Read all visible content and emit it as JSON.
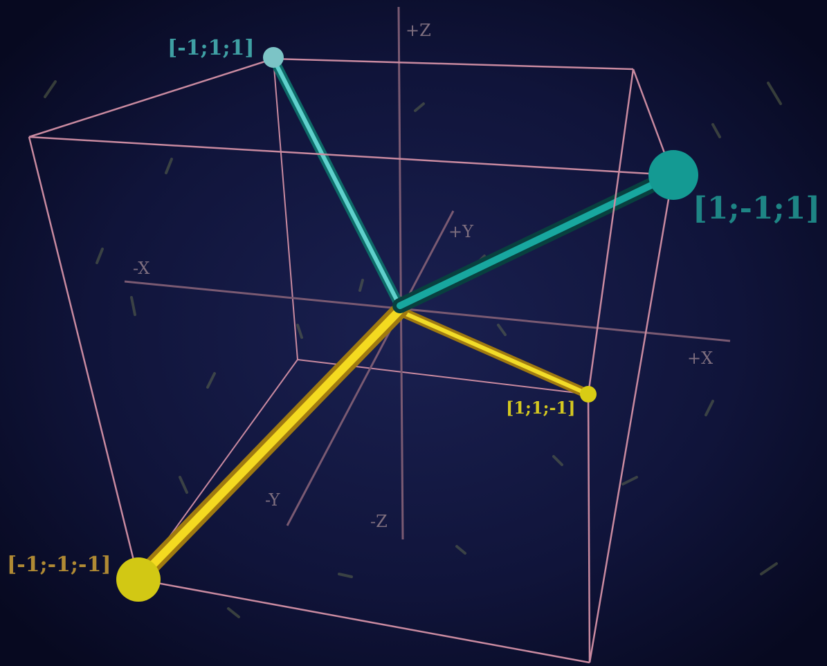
{
  "colors": {
    "background": "#0f1238",
    "cube_edge": "#c98aa0",
    "axis": "#7a5a72",
    "axis_label": "#7f6f7f",
    "teal": "#149a93",
    "teal_light": "#5fd0cc",
    "yellow": "#e0d012",
    "yellow_dark": "#b08a1a",
    "label_teal_small": "#3fa0a4",
    "label_teal_large": "#1e8585",
    "label_yellow_small": "#d4c820",
    "label_yellow_large": "#b08a34"
  },
  "axes": {
    "plus_z": "+Z",
    "minus_z": "-Z",
    "plus_x": "+X",
    "minus_x": "-X",
    "plus_y": "+Y",
    "minus_y": "-Y"
  },
  "vertices": {
    "top_back_left": "[-1;1;1]",
    "top_front_right": "[1;-1;1]",
    "bottom_back_right": "[1;1;-1]",
    "bottom_front_left": "[-1;-1;-1]"
  }
}
